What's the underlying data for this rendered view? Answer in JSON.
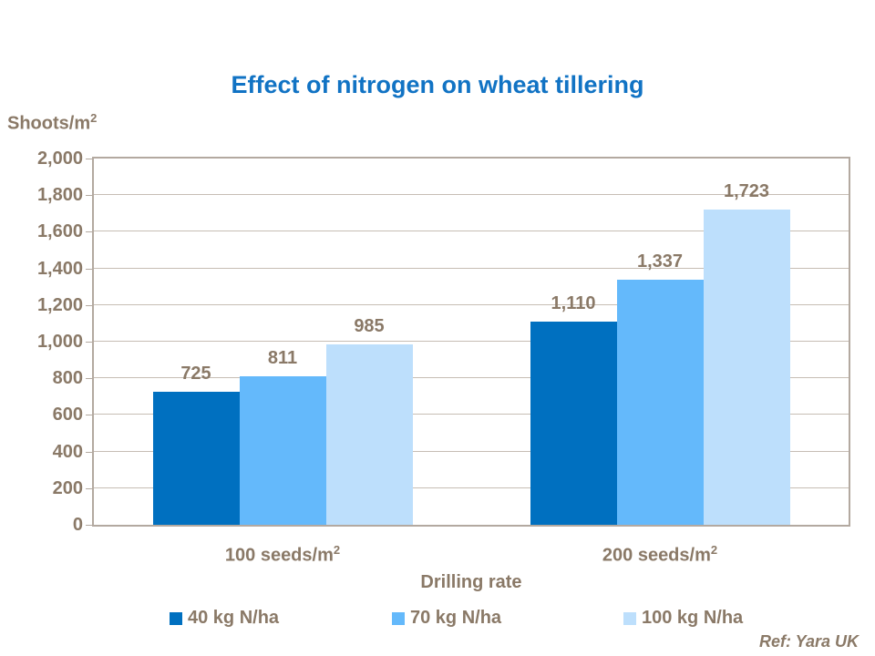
{
  "chart_data": {
    "type": "bar",
    "title": "Effect of nitrogen on wheat tillering",
    "ylabel": {
      "text": "Shoots/m",
      "sup": "2"
    },
    "xlabel": "Drilling rate",
    "categories": [
      {
        "text": "100 seeds/m",
        "sup": "2"
      },
      {
        "text": "200 seeds/m",
        "sup": "2"
      }
    ],
    "series": [
      {
        "name": "40 kg N/ha",
        "color": "#0070C0",
        "values": [
          725,
          1110
        ],
        "labels": [
          "725",
          "1,110"
        ]
      },
      {
        "name": "70 kg N/ha",
        "color": "#64B9FB",
        "values": [
          811,
          1337
        ],
        "labels": [
          "811",
          "1,337"
        ]
      },
      {
        "name": "100 kg N/ha",
        "color": "#BDDFFC",
        "values": [
          985,
          1723
        ],
        "labels": [
          "985",
          "1,723"
        ]
      }
    ],
    "ylim": [
      0,
      2000
    ],
    "ytick_step": 200,
    "yticks": [
      "0",
      "200",
      "400",
      "600",
      "800",
      "1,000",
      "1,200",
      "1,400",
      "1,600",
      "1,800",
      "2,000"
    ],
    "grid": true,
    "legend_position": "bottom"
  },
  "footer": {
    "ref": "Ref: Yara UK"
  },
  "colors": {
    "title": "#1173C4",
    "text_brown": "#8A7967",
    "axis": "#B3A9A0",
    "gridline": "#C6BDB4"
  }
}
